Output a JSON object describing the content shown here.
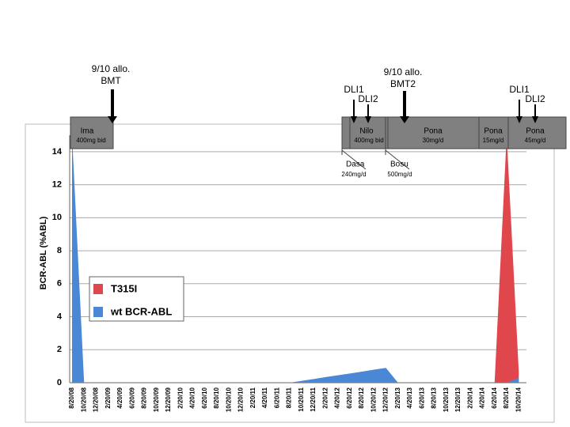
{
  "chart_data": {
    "type": "area",
    "y_label": "BCR-ABL (%ABL)",
    "categories": [
      "8/20/08",
      "10/20/08",
      "12/20/08",
      "2/20/09",
      "4/20/09",
      "6/20/09",
      "8/20/09",
      "10/20/09",
      "12/20/09",
      "2/20/10",
      "4/20/10",
      "6/20/10",
      "8/20/10",
      "10/20/10",
      "12/20/10",
      "2/20/11",
      "4/20/11",
      "6/20/11",
      "8/20/11",
      "10/20/11",
      "12/20/11",
      "2/20/12",
      "4/20/12",
      "6/20/12",
      "8/20/12",
      "10/20/12",
      "12/20/12",
      "2/20/13",
      "4/20/13",
      "6/20/13",
      "8/20/13",
      "10/20/13",
      "12/20/13",
      "2/20/14",
      "4/20/14",
      "6/20/14",
      "8/20/14",
      "10/20/14"
    ],
    "series": [
      {
        "name": "T315I",
        "color": "#e0474c",
        "values": [
          0,
          0,
          0,
          0,
          0,
          0,
          0,
          0,
          0,
          0,
          0,
          0,
          0,
          0,
          0,
          0,
          0,
          0,
          0,
          0,
          0,
          0,
          0,
          0,
          0,
          0,
          0,
          0,
          0,
          0,
          0,
          0,
          0,
          0,
          0,
          0,
          15,
          0.7
        ]
      },
      {
        "name": "wt BCR-ABL",
        "color": "#4a88d6",
        "values": [
          15,
          0,
          0,
          0,
          0,
          0,
          0,
          0,
          0,
          0,
          0,
          0,
          0,
          0,
          0,
          0,
          0,
          0,
          0,
          0.11,
          0.22,
          0.34,
          0.45,
          0.56,
          0.67,
          0.79,
          0.9,
          0,
          0,
          0,
          0,
          0,
          0,
          0,
          0,
          0,
          0,
          0.3
        ]
      }
    ],
    "ylim": [
      0,
      15
    ],
    "yticks": [
      0,
      2,
      4,
      6,
      8,
      10,
      12,
      14
    ],
    "grid": true,
    "regimens": [
      {
        "name": "Ima",
        "dose": "400mg bid"
      },
      {
        "name": "Nilo",
        "dose": "400mg bid"
      },
      {
        "name": "Pona",
        "dose": "30mg/d"
      },
      {
        "name": "Pona",
        "dose": "15mg/d"
      },
      {
        "name": "Pona",
        "dose": "45mg/d"
      },
      {
        "name": "Dasa",
        "dose": "240mg/d"
      },
      {
        "name": "Bosu",
        "dose": "500mg/d"
      }
    ],
    "events": [
      {
        "lines": [
          "9/10 allo.",
          "BMT"
        ]
      },
      {
        "lines": [
          "DLI1"
        ]
      },
      {
        "lines": [
          "DLI2"
        ]
      },
      {
        "lines": [
          "9/10 allo.",
          "BMT2"
        ]
      },
      {
        "lines": [
          "DLI1"
        ]
      },
      {
        "lines": [
          "DLI2"
        ]
      }
    ]
  }
}
